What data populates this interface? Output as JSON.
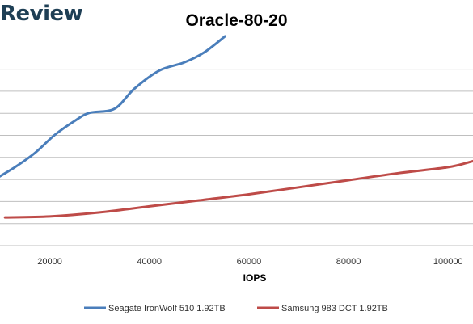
{
  "brand": {
    "text": "Review"
  },
  "chart_data": {
    "type": "line",
    "title": "Oracle-80-20",
    "xlabel": "IOPS",
    "ylabel": "",
    "xlim": [
      10000,
      105000
    ],
    "ylim": [
      0,
      11
    ],
    "x_ticks": [
      20000,
      40000,
      60000,
      80000,
      100000
    ],
    "grid": true,
    "legend_position": "bottom",
    "series": [
      {
        "name": "Seagate IronWolf 510 1.92TB",
        "color": "#4a7ebb",
        "points": [
          [
            9000,
            3.3
          ],
          [
            13000,
            3.9
          ],
          [
            17000,
            4.6
          ],
          [
            21000,
            5.5
          ],
          [
            25000,
            6.2
          ],
          [
            28000,
            6.6
          ],
          [
            33000,
            6.8
          ],
          [
            37000,
            7.8
          ],
          [
            42000,
            8.7
          ],
          [
            47000,
            9.1
          ],
          [
            51000,
            9.6
          ],
          [
            55200,
            10.4
          ]
        ]
      },
      {
        "name": "Samsung 983 DCT 1.92TB",
        "color": "#be4b48",
        "points": [
          [
            11000,
            1.4
          ],
          [
            20000,
            1.45
          ],
          [
            30000,
            1.65
          ],
          [
            40000,
            1.95
          ],
          [
            50000,
            2.25
          ],
          [
            60000,
            2.55
          ],
          [
            70000,
            2.9
          ],
          [
            80000,
            3.25
          ],
          [
            90000,
            3.6
          ],
          [
            100000,
            3.9
          ],
          [
            105000,
            4.2
          ]
        ]
      }
    ]
  }
}
